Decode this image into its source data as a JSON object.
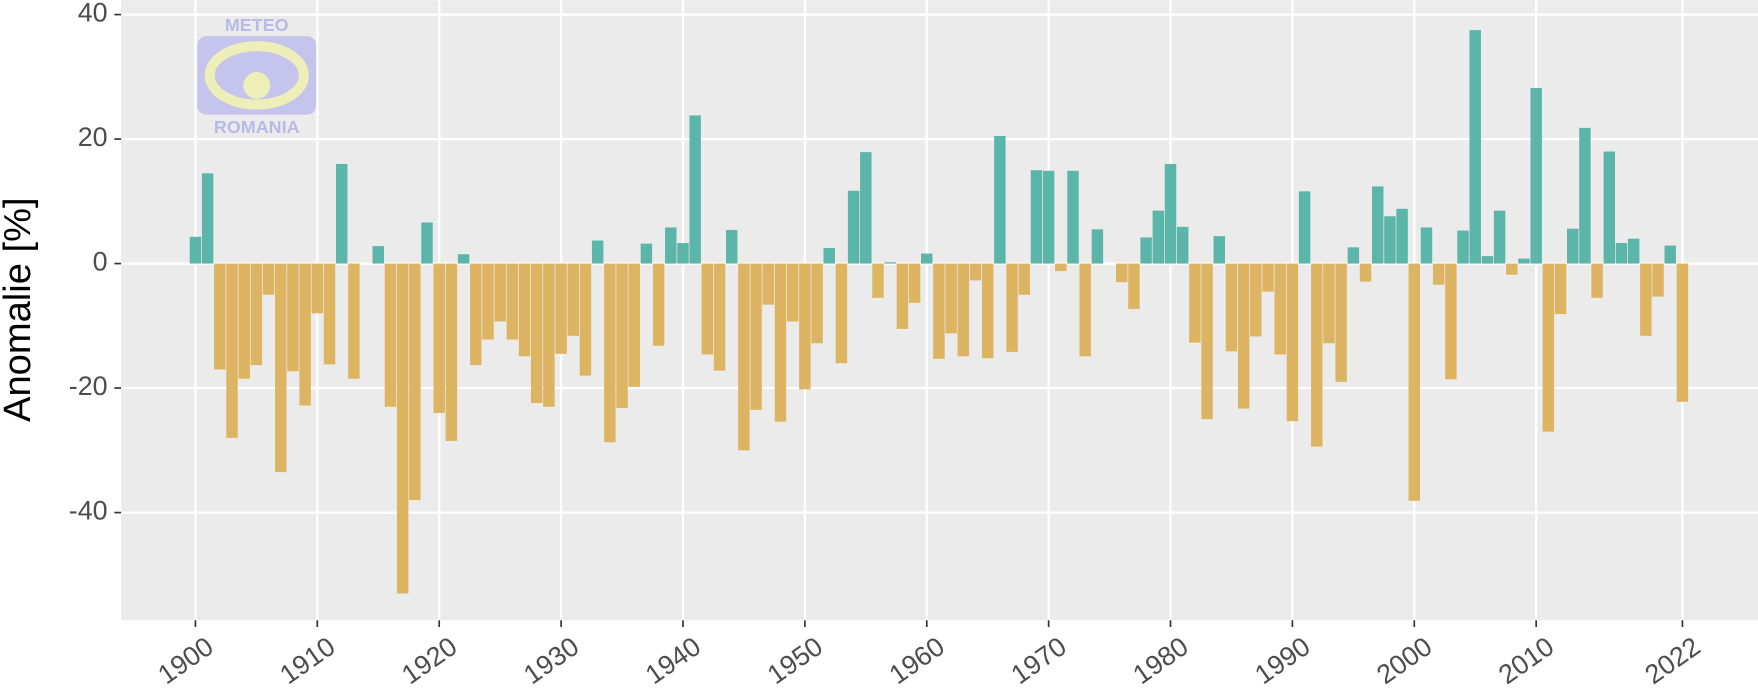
{
  "chart_data": {
    "type": "bar",
    "y_label": "Anomalie [%]",
    "logo": {
      "top": "METEO",
      "bottom": "ROMANIA"
    },
    "x": [
      1900,
      1901,
      1902,
      1903,
      1904,
      1905,
      1906,
      1907,
      1908,
      1909,
      1910,
      1911,
      1912,
      1913,
      1914,
      1915,
      1916,
      1917,
      1918,
      1919,
      1920,
      1921,
      1922,
      1923,
      1924,
      1925,
      1926,
      1927,
      1928,
      1929,
      1930,
      1931,
      1932,
      1933,
      1934,
      1935,
      1936,
      1937,
      1938,
      1939,
      1940,
      1941,
      1942,
      1943,
      1944,
      1945,
      1946,
      1947,
      1948,
      1949,
      1950,
      1951,
      1952,
      1953,
      1954,
      1955,
      1956,
      1957,
      1958,
      1959,
      1960,
      1961,
      1962,
      1963,
      1964,
      1965,
      1966,
      1967,
      1968,
      1969,
      1970,
      1971,
      1972,
      1973,
      1974,
      1975,
      1976,
      1977,
      1978,
      1979,
      1980,
      1981,
      1982,
      1983,
      1984,
      1985,
      1986,
      1987,
      1988,
      1989,
      1990,
      1991,
      1992,
      1993,
      1994,
      1995,
      1996,
      1997,
      1998,
      1999,
      2000,
      2001,
      2002,
      2003,
      2004,
      2005,
      2006,
      2007,
      2008,
      2009,
      2010,
      2011,
      2012,
      2013,
      2014,
      2015,
      2016,
      2017,
      2018,
      2019,
      2020,
      2021,
      2022
    ],
    "values": [
      4.3,
      14.5,
      -17,
      -28,
      -18.5,
      -16.3,
      -5,
      -33.5,
      -17.3,
      -22.8,
      -8,
      -16.2,
      16,
      -18.5,
      0,
      2.8,
      -23,
      -53,
      -38,
      6.6,
      -24,
      -28.5,
      1.5,
      -16.3,
      -12.2,
      -9.3,
      -12.2,
      -14.9,
      -22.4,
      -23,
      -14.5,
      -11.6,
      -18,
      3.7,
      -28.7,
      -23.2,
      -19.8,
      3.2,
      -13.2,
      5.8,
      3.3,
      23.8,
      -14.6,
      -17.2,
      5.4,
      -30,
      -23.5,
      -6.6,
      -25.4,
      -9.3,
      -20.2,
      -12.8,
      2.5,
      -16,
      11.7,
      17.9,
      -5.5,
      0.2,
      -10.5,
      -6.3,
      1.6,
      -15.3,
      -11.2,
      -14.9,
      -2.7,
      -15.2,
      20.5,
      -14.2,
      -5,
      15,
      14.9,
      -1.2,
      14.9,
      -14.9,
      5.5,
      0,
      -3,
      -7.3,
      4.2,
      8.5,
      16,
      5.9,
      -12.7,
      -25,
      4.4,
      -14.1,
      -23.3,
      -11.7,
      -4.5,
      -14.6,
      -25.3,
      11.6,
      -29.4,
      -12.8,
      -19,
      2.6,
      -2.9,
      12.4,
      7.6,
      8.8,
      -38.1,
      5.8,
      -3.4,
      -18.6,
      5.3,
      37.5,
      1.2,
      8.5,
      -1.8,
      0.8,
      28.2,
      -27,
      -8.1,
      5.6,
      21.8,
      -5.5,
      18,
      3.3,
      4,
      -11.6,
      -5.3,
      2.9,
      -22.2
    ],
    "colors": {
      "positive": "#5bb5a9",
      "negative": "#ddb462"
    },
    "xlim": [
      1893.9,
      2028.2
    ],
    "xticks": [
      1900,
      1910,
      1920,
      1930,
      1940,
      1950,
      1960,
      1970,
      1980,
      1990,
      2000,
      2010,
      2022
    ],
    "ylim": [
      -57.3,
      42.3
    ],
    "yticks": [
      -40,
      -20,
      0,
      20,
      40
    ],
    "grid": true
  }
}
